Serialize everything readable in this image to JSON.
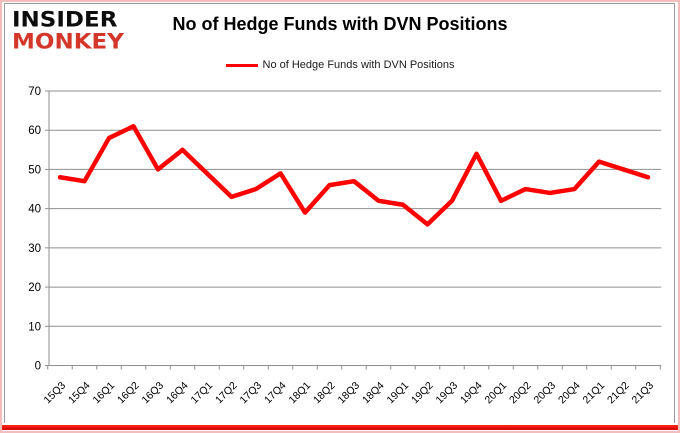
{
  "header": {
    "logo_line1": "INSIDER",
    "logo_line2": "MONKEY",
    "title": "No of Hedge Funds with DVN Positions"
  },
  "legend": {
    "label": "No of Hedge Funds with DVN Positions"
  },
  "chart_data": {
    "type": "line",
    "title": "No of Hedge Funds with DVN Positions",
    "categories": [
      "15Q3",
      "15Q4",
      "16Q1",
      "16Q2",
      "16Q3",
      "16Q4",
      "17Q1",
      "17Q2",
      "17Q3",
      "17Q4",
      "18Q1",
      "18Q2",
      "18Q3",
      "18Q4",
      "19Q1",
      "19Q2",
      "19Q3",
      "19Q4",
      "20Q1",
      "20Q2",
      "20Q3",
      "20Q4",
      "21Q1",
      "21Q2",
      "21Q3"
    ],
    "series": [
      {
        "name": "No of Hedge Funds with DVN Positions",
        "color": "#ff0000",
        "values": [
          48,
          47,
          58,
          61,
          50,
          55,
          49,
          43,
          45,
          49,
          39,
          46,
          47,
          42,
          41,
          36,
          42,
          54,
          42,
          45,
          44,
          45,
          52,
          50,
          48
        ]
      }
    ],
    "xlabel": "",
    "ylabel": "",
    "ylim": [
      0,
      70
    ],
    "yticks": [
      0,
      10,
      20,
      30,
      40,
      50,
      60,
      70
    ],
    "grid": true,
    "legend_position": "top"
  },
  "colors": {
    "line": "#ff0000",
    "gridline": "#8f8f8f",
    "axis": "#8f8f8f",
    "tick_text": "#000000",
    "logo_red": "#d4372a",
    "frame_pink": "#f3bdbd",
    "bottom_bar_red": "#e60000"
  }
}
